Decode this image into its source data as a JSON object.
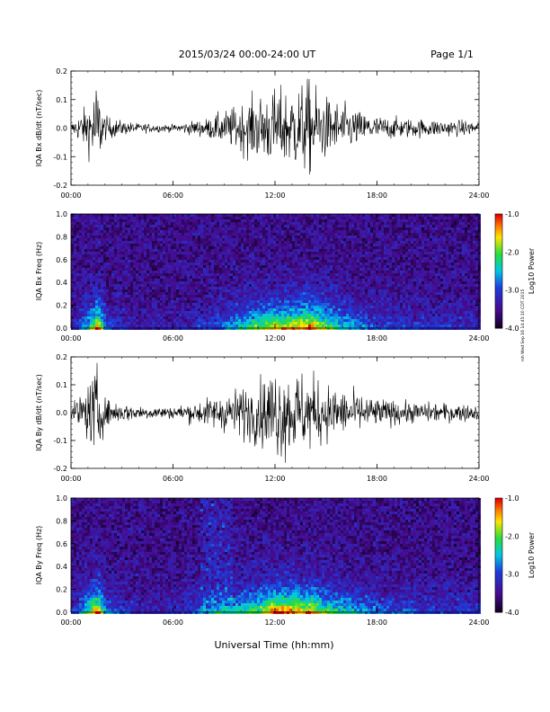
{
  "header": {
    "title": "2015/03/24  00:00-24:00 UT",
    "page": "Page 1/1"
  },
  "footer": {
    "xlabel": "Universal Time (hh:mm)",
    "stamp": "rsh Wed Sep 16 14:45:10 CDT 2015"
  },
  "chart_data": [
    {
      "type": "line",
      "ylabel": "IQA Bx dB/dt (nT/sec)",
      "ylim": [
        -0.2,
        0.2
      ],
      "yticks": [
        "0.2",
        "0.1",
        "0.0",
        "-0.1",
        "-0.2"
      ],
      "ytick_values": [
        0.2,
        0.1,
        0.0,
        -0.1,
        -0.2
      ],
      "xticks": [
        "00:00",
        "06:00",
        "12:00",
        "18:00",
        "24:00"
      ],
      "x_hours": [
        0,
        1,
        1.5,
        2,
        3,
        4,
        6,
        8,
        9,
        10,
        11,
        12,
        13,
        14,
        15,
        16,
        17,
        18,
        20,
        22,
        24
      ],
      "envelope": [
        0.02,
        0.1,
        0.2,
        0.05,
        0.03,
        0.02,
        0.015,
        0.04,
        0.07,
        0.1,
        0.14,
        0.16,
        0.17,
        0.2,
        0.13,
        0.1,
        0.07,
        0.05,
        0.04,
        0.035,
        0.03
      ]
    },
    {
      "type": "heatmap",
      "ylabel": "IQA Bx Freq (Hz)",
      "ylim": [
        0.0,
        1.0
      ],
      "yticks": [
        "1.0",
        "0.8",
        "0.6",
        "0.4",
        "0.2",
        "0.0"
      ],
      "ytick_values": [
        1.0,
        0.8,
        0.6,
        0.4,
        0.2,
        0.0
      ],
      "xticks": [
        "00:00",
        "06:00",
        "12:00",
        "18:00",
        "24:00"
      ],
      "colorbar_label": "Log10 Power",
      "colorbar_range": [
        -4.0,
        -1.0
      ],
      "colorbar_ticks": [
        "-1.0",
        "-2.0",
        "-3.0",
        "-4.0"
      ],
      "colorbar_tick_values": [
        -1.0,
        -2.0,
        -3.0,
        -4.0
      ]
    },
    {
      "type": "line",
      "ylabel": "IQA By dB/dt (nT/sec)",
      "ylim": [
        -0.2,
        0.2
      ],
      "yticks": [
        "0.2",
        "0.1",
        "0.0",
        "-0.1",
        "-0.2"
      ],
      "ytick_values": [
        0.2,
        0.1,
        0.0,
        -0.1,
        -0.2
      ],
      "xticks": [
        "00:00",
        "06:00",
        "12:00",
        "18:00",
        "24:00"
      ],
      "x_hours": [
        0,
        1,
        1.5,
        2,
        3,
        4,
        6,
        8,
        9,
        10,
        11,
        12,
        13,
        14,
        15,
        16,
        17,
        18,
        20,
        22,
        24
      ],
      "envelope": [
        0.025,
        0.12,
        0.2,
        0.06,
        0.04,
        0.03,
        0.025,
        0.06,
        0.08,
        0.11,
        0.13,
        0.2,
        0.18,
        0.17,
        0.12,
        0.1,
        0.08,
        0.06,
        0.045,
        0.04,
        0.035
      ]
    },
    {
      "type": "heatmap",
      "ylabel": "IQA By Freq (Hz)",
      "ylim": [
        0.0,
        1.0
      ],
      "yticks": [
        "1.0",
        "0.8",
        "0.6",
        "0.4",
        "0.2",
        "0.0"
      ],
      "ytick_values": [
        1.0,
        0.8,
        0.6,
        0.4,
        0.2,
        0.0
      ],
      "xticks": [
        "00:00",
        "06:00",
        "12:00",
        "18:00",
        "24:00"
      ],
      "colorbar_label": "Log10 Power",
      "colorbar_range": [
        -4.0,
        -1.0
      ],
      "colorbar_ticks": [
        "-1.0",
        "-2.0",
        "-3.0",
        "-4.0"
      ],
      "colorbar_tick_values": [
        -1.0,
        -2.0,
        -3.0,
        -4.0
      ]
    }
  ]
}
